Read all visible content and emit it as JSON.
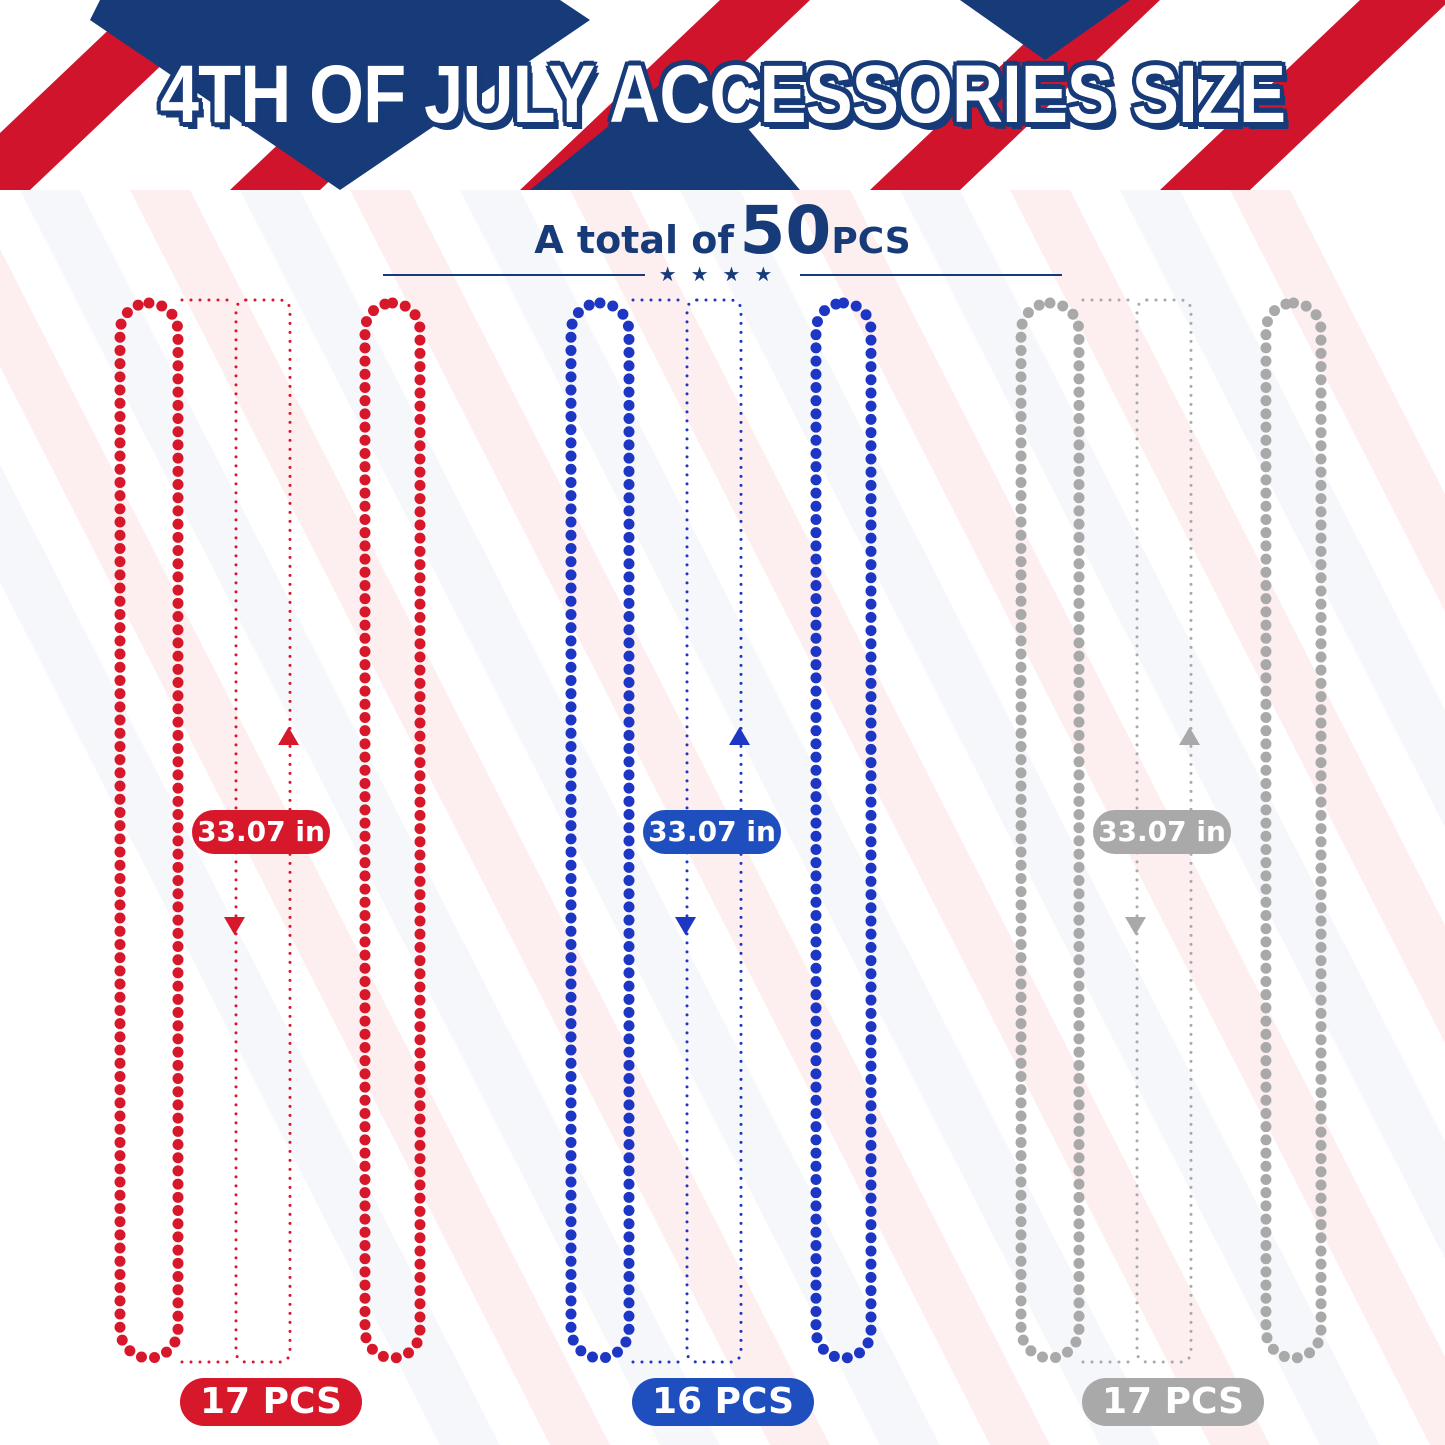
{
  "header": {
    "title": "4TH OF JULY ACCESSORIES SIZE"
  },
  "total": {
    "prefix": "A total of",
    "number": "50",
    "unit": "PCS",
    "stars": "★★★★"
  },
  "colors": {
    "navy": "#173a78",
    "flag_red": "#d0142c",
    "red": "#d7172a",
    "blue": "#1d36c4",
    "silver": "#a9a9a9"
  },
  "groups": [
    {
      "color_name": "red",
      "color": "#d7172a",
      "pill": "#d7172a",
      "length": "33.07 in",
      "count": "17 PCS"
    },
    {
      "color_name": "blue",
      "color": "#1d36c4",
      "pill": "#1f4fbf",
      "length": "33.07 in",
      "count": "16 PCS"
    },
    {
      "color_name": "silver",
      "color": "#a9a9a9",
      "pill": "#a9a9a9",
      "length": "33.07 in",
      "count": "17 PCS"
    }
  ]
}
